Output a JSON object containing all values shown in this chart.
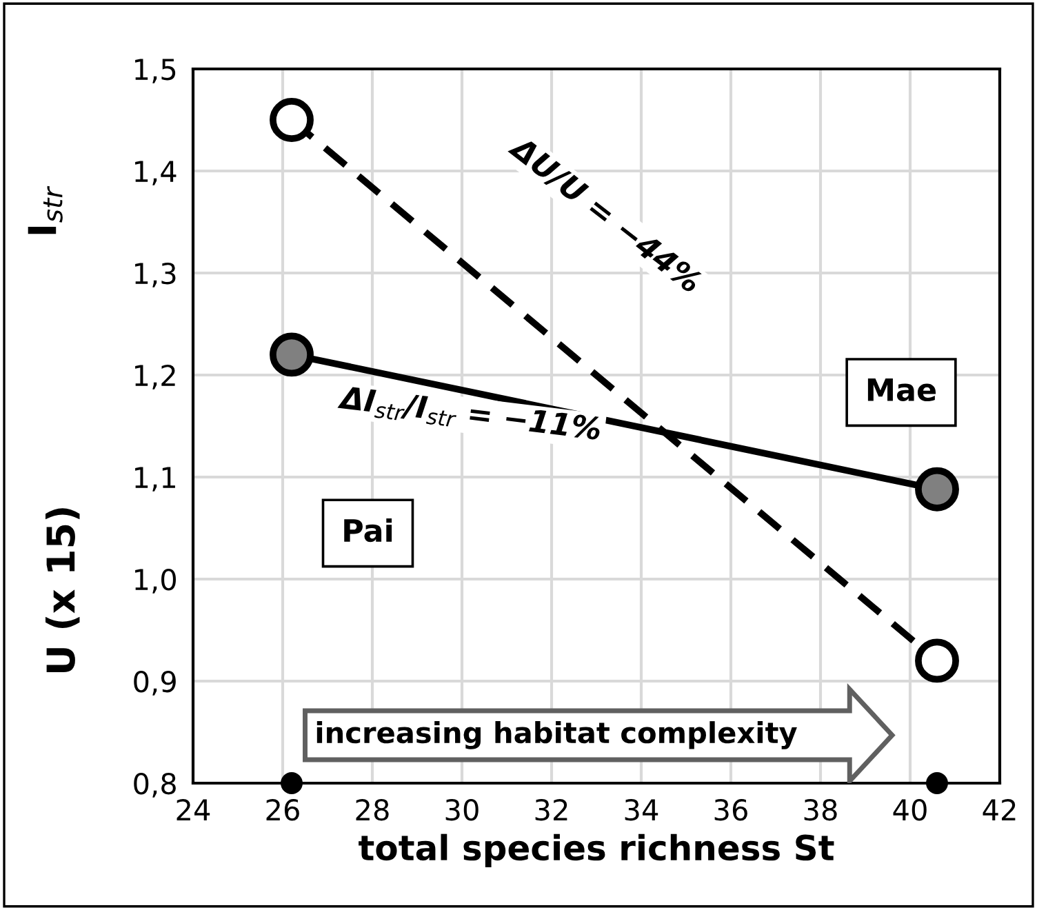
{
  "chart_data": {
    "type": "line",
    "xlabel": "total species richness St",
    "ylabel": "I$_{str}$",
    "x": [
      26.2,
      40.6
    ],
    "series": [
      {
        "color": "#000000",
        "colors": [
          "#808080",
          "#808080"
        ],
        "values": [
          1.22,
          1.088
        ],
        "line_style": "solid"
      },
      {
        "color": "#000000",
        "colors": [
          "#ffffff",
          "#ffffff"
        ],
        "values": [
          1.45,
          0.92
        ],
        "line_style": "dashed"
      },
      {
        "type": "scatter",
        "color": "#000000",
        "values": [
          0.8,
          0.8
        ]
      }
    ],
    "annotations": [
      "U (x 15)",
      "ΔU/U = −44%",
      "ΔI$_{str}$/I$_{str}$ = −11%",
      "Pai",
      "Mae",
      "increasing habitat complexity"
    ],
    "xlim": [
      24,
      42
    ],
    "xticks": [
      24,
      26,
      28,
      30,
      32,
      34,
      36,
      38,
      40,
      42
    ],
    "ylim": [
      0.8,
      1.5
    ],
    "yticks": [
      {
        "value": 0.8,
        "label": "0,8"
      },
      {
        "value": 0.9,
        "label": "0,9"
      },
      {
        "value": 1.0,
        "label": "1,0"
      },
      {
        "value": 1.1,
        "label": "1,1"
      },
      {
        "value": 1.2,
        "label": "1,2"
      },
      {
        "value": 1.3,
        "label": "1,3"
      },
      {
        "value": 1.4,
        "label": "1,4"
      },
      {
        "value": 1.5,
        "label": "1,5"
      }
    ],
    "grid": true,
    "marker": "circle"
  }
}
